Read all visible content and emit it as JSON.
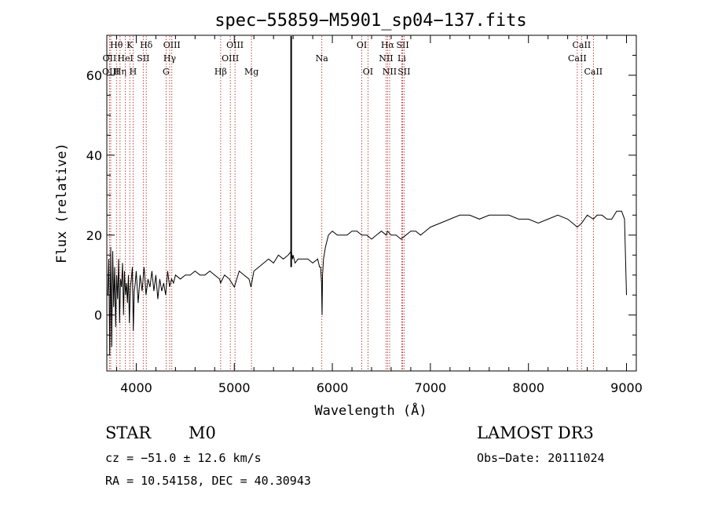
{
  "chart_data": {
    "type": "line",
    "title": "spec−55859−M5901_sp04−137.fits",
    "xlabel": "Wavelength (Å)",
    "ylabel": "Flux (relative)",
    "xlim": [
      3700,
      9100
    ],
    "ylim": [
      -14,
      70
    ],
    "xticks": [
      4000,
      5000,
      6000,
      7000,
      8000,
      9000
    ],
    "yticks": [
      0,
      20,
      40,
      60
    ],
    "grid": false,
    "series": [
      {
        "name": "spectrum",
        "x": [
          3710,
          3720,
          3730,
          3740,
          3750,
          3760,
          3770,
          3780,
          3790,
          3800,
          3810,
          3820,
          3830,
          3840,
          3850,
          3860,
          3870,
          3880,
          3890,
          3900,
          3910,
          3920,
          3930,
          3940,
          3950,
          3960,
          3970,
          3980,
          3990,
          4000,
          4020,
          4040,
          4060,
          4080,
          4100,
          4120,
          4140,
          4160,
          4180,
          4200,
          4220,
          4240,
          4260,
          4280,
          4300,
          4320,
          4340,
          4360,
          4380,
          4400,
          4450,
          4500,
          4550,
          4600,
          4650,
          4700,
          4750,
          4800,
          4850,
          4860,
          4900,
          4950,
          5000,
          5050,
          5100,
          5150,
          5170,
          5200,
          5250,
          5300,
          5350,
          5400,
          5450,
          5500,
          5550,
          5580,
          5595,
          5600,
          5620,
          5650,
          5700,
          5750,
          5800,
          5850,
          5870,
          5880,
          5890,
          5895,
          5900,
          5910,
          5930,
          5960,
          6000,
          6050,
          6100,
          6150,
          6200,
          6250,
          6300,
          6350,
          6400,
          6450,
          6500,
          6550,
          6563,
          6600,
          6650,
          6700,
          6750,
          6800,
          6850,
          6900,
          6950,
          7000,
          7100,
          7200,
          7300,
          7400,
          7500,
          7600,
          7700,
          7800,
          7900,
          8000,
          8100,
          8200,
          8300,
          8400,
          8450,
          8498,
          8542,
          8600,
          8662,
          8700,
          8750,
          8800,
          8850,
          8900,
          8950,
          8980,
          9000
        ],
        "values": [
          5,
          14,
          -10,
          17,
          -8,
          16,
          2,
          12,
          -3,
          10,
          4,
          14,
          -2,
          9,
          7,
          13,
          0,
          11,
          5,
          8,
          3,
          10,
          -2,
          7,
          9,
          12,
          -4,
          6,
          8,
          11,
          3,
          10,
          6,
          12,
          5,
          9,
          7,
          11,
          6,
          10,
          4,
          9,
          6,
          8,
          5,
          11,
          7,
          9,
          8,
          10,
          9,
          10,
          10,
          11,
          10,
          10,
          11,
          10,
          9,
          8,
          10,
          9,
          7,
          11,
          10,
          9,
          7,
          11,
          12,
          13,
          14,
          13,
          15,
          14,
          15,
          16,
          14,
          15,
          13,
          14,
          14,
          14,
          13,
          14,
          12,
          12,
          8,
          0,
          10,
          14,
          17,
          20,
          21,
          20,
          20,
          20,
          21,
          21,
          20,
          20,
          19,
          20,
          21,
          20,
          21,
          20,
          20,
          19,
          20,
          21,
          21,
          20,
          21,
          22,
          23,
          24,
          25,
          25,
          24,
          25,
          25,
          25,
          24,
          24,
          23,
          24,
          25,
          24,
          23,
          22,
          23,
          25,
          24,
          25,
          25,
          24,
          24,
          26,
          26,
          24,
          5
        ]
      }
    ],
    "emission_lines": [
      {
        "label": "Hθ",
        "x": 3798,
        "row": 0
      },
      {
        "label": "OII",
        "x": 3727,
        "row": 1
      },
      {
        "label": "OIII",
        "x": 3740,
        "row": 2
      },
      {
        "label": "Hη",
        "x": 3835,
        "row": 2
      },
      {
        "label": "HeI",
        "x": 3889,
        "row": 1
      },
      {
        "label": "K",
        "x": 3934,
        "row": 0
      },
      {
        "label": "H",
        "x": 3968,
        "row": 2
      },
      {
        "label": "SII",
        "x": 4071,
        "row": 1
      },
      {
        "label": "Hδ",
        "x": 4102,
        "row": 0
      },
      {
        "label": "OIII",
        "x": 4363,
        "row": 0
      },
      {
        "label": "Hγ",
        "x": 4341,
        "row": 1
      },
      {
        "label": "G",
        "x": 4304,
        "row": 2
      },
      {
        "label": "OIII",
        "x": 5007,
        "row": 0
      },
      {
        "label": "OIII",
        "x": 4959,
        "row": 1
      },
      {
        "label": "Hβ",
        "x": 4861,
        "row": 2
      },
      {
        "label": "Mg",
        "x": 5175,
        "row": 2
      },
      {
        "label": "Na",
        "x": 5893,
        "row": 1
      },
      {
        "label": "OI",
        "x": 6300,
        "row": 0
      },
      {
        "label": "OI",
        "x": 6363,
        "row": 2
      },
      {
        "label": "Hα",
        "x": 6563,
        "row": 0
      },
      {
        "label": "NII",
        "x": 6548,
        "row": 1
      },
      {
        "label": "NII",
        "x": 6584,
        "row": 2
      },
      {
        "label": "SII",
        "x": 6717,
        "row": 0
      },
      {
        "label": "Li",
        "x": 6708,
        "row": 1
      },
      {
        "label": "SII",
        "x": 6731,
        "row": 2
      },
      {
        "label": "CaII",
        "x": 8542,
        "row": 0
      },
      {
        "label": "CaII",
        "x": 8498,
        "row": 1
      },
      {
        "label": "CaII",
        "x": 8662,
        "row": 2
      }
    ],
    "marker_line": {
      "x": 5580
    }
  },
  "info": {
    "class_label": "STAR",
    "subclass": "M0",
    "survey": "LAMOST DR3",
    "cz": "cz = −51.0 ± 12.6 km/s",
    "obs_date": "Obs−Date: 20111024",
    "coords": "RA =  10.54158, DEC =  40.30943"
  }
}
